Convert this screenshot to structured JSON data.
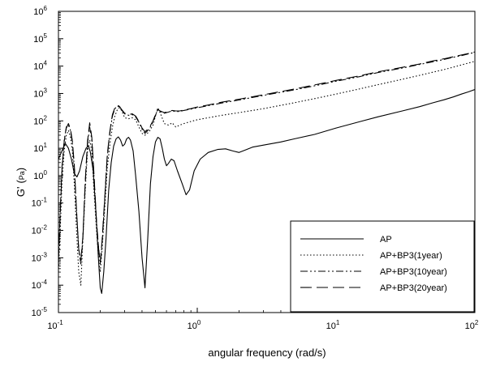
{
  "chart_data": {
    "type": "line",
    "title": "",
    "xlabel": "angular frequency (rad/s)",
    "ylabel_main": "G'",
    "ylabel_unit": "Pa",
    "x_scale": "log",
    "y_scale": "log",
    "xlim": [
      0.1,
      100
    ],
    "ylim": [
      1e-05,
      1000000
    ],
    "x_ticks": [
      {
        "value": 0.1,
        "base": "10",
        "exp": "-1"
      },
      {
        "value": 1,
        "base": "10",
        "exp": "0"
      },
      {
        "value": 10,
        "base": "10",
        "exp": "1"
      },
      {
        "value": 100,
        "base": "10",
        "exp": "2"
      }
    ],
    "y_ticks": [
      {
        "value": 1e-05,
        "base": "10",
        "exp": "-5"
      },
      {
        "value": 0.0001,
        "base": "10",
        "exp": "-4"
      },
      {
        "value": 0.001,
        "base": "10",
        "exp": "-3"
      },
      {
        "value": 0.01,
        "base": "10",
        "exp": "-2"
      },
      {
        "value": 0.1,
        "base": "10",
        "exp": "-1"
      },
      {
        "value": 1,
        "base": "10",
        "exp": "0"
      },
      {
        "value": 10,
        "base": "10",
        "exp": "1"
      },
      {
        "value": 100,
        "base": "10",
        "exp": "2"
      },
      {
        "value": 1000,
        "base": "10",
        "exp": "3"
      },
      {
        "value": 10000,
        "base": "10",
        "exp": "4"
      },
      {
        "value": 100000,
        "base": "10",
        "exp": "5"
      },
      {
        "value": 1000000,
        "base": "10",
        "exp": "6"
      }
    ],
    "grid": false,
    "legend_position": "bottom-right",
    "series": [
      {
        "name": "AP",
        "style": "solid",
        "points": [
          [
            0.1,
            4
          ],
          [
            0.106,
            8
          ],
          [
            0.112,
            15
          ],
          [
            0.118,
            10
          ],
          [
            0.124,
            4
          ],
          [
            0.13,
            1.2
          ],
          [
            0.136,
            0.9
          ],
          [
            0.142,
            1.5
          ],
          [
            0.15,
            5
          ],
          [
            0.158,
            10
          ],
          [
            0.165,
            12
          ],
          [
            0.17,
            7
          ],
          [
            0.178,
            1.5
          ],
          [
            0.186,
            0.05
          ],
          [
            0.194,
            0.001
          ],
          [
            0.2,
            8e-05
          ],
          [
            0.205,
            5e-05
          ],
          [
            0.212,
            0.0003
          ],
          [
            0.22,
            0.005
          ],
          [
            0.23,
            0.3
          ],
          [
            0.24,
            3
          ],
          [
            0.25,
            12
          ],
          [
            0.26,
            22
          ],
          [
            0.27,
            26
          ],
          [
            0.28,
            20
          ],
          [
            0.29,
            12
          ],
          [
            0.3,
            14
          ],
          [
            0.31,
            22
          ],
          [
            0.32,
            25
          ],
          [
            0.33,
            20
          ],
          [
            0.345,
            8
          ],
          [
            0.36,
            1
          ],
          [
            0.38,
            0.05
          ],
          [
            0.4,
            0.001
          ],
          [
            0.42,
            8e-05
          ],
          [
            0.44,
            0.005
          ],
          [
            0.46,
            0.5
          ],
          [
            0.48,
            5
          ],
          [
            0.5,
            17
          ],
          [
            0.52,
            25
          ],
          [
            0.54,
            22
          ],
          [
            0.56,
            10
          ],
          [
            0.58,
            4
          ],
          [
            0.6,
            2.3
          ],
          [
            0.62,
            2.8
          ],
          [
            0.65,
            4
          ],
          [
            0.68,
            3.5
          ],
          [
            0.72,
            1.5
          ],
          [
            0.78,
            0.5
          ],
          [
            0.83,
            0.2
          ],
          [
            0.88,
            0.3
          ],
          [
            0.95,
            1.5
          ],
          [
            1.05,
            4
          ],
          [
            1.2,
            7
          ],
          [
            1.4,
            9
          ],
          [
            1.6,
            9.5
          ],
          [
            1.8,
            8
          ],
          [
            2.0,
            7
          ],
          [
            2.2,
            8.5
          ],
          [
            2.5,
            11
          ],
          [
            3,
            13
          ],
          [
            4,
            17
          ],
          [
            5,
            22
          ],
          [
            7,
            32
          ],
          [
            10,
            55
          ],
          [
            15,
            95
          ],
          [
            20,
            140
          ],
          [
            30,
            230
          ],
          [
            40,
            330
          ],
          [
            50,
            460
          ],
          [
            60,
            590
          ],
          [
            70,
            750
          ],
          [
            80,
            950
          ],
          [
            90,
            1150
          ],
          [
            100,
            1400
          ]
        ]
      },
      {
        "name": "AP+BP3(1year)",
        "style": "dotted",
        "points": [
          [
            0.1,
            0.0003
          ],
          [
            0.103,
            0.01
          ],
          [
            0.106,
            0.5
          ],
          [
            0.11,
            8
          ],
          [
            0.114,
            30
          ],
          [
            0.118,
            45
          ],
          [
            0.122,
            25
          ],
          [
            0.126,
            8
          ],
          [
            0.13,
            0.5
          ],
          [
            0.135,
            0.01
          ],
          [
            0.14,
            0.0003
          ],
          [
            0.145,
            0.0001
          ],
          [
            0.15,
            0.005
          ],
          [
            0.156,
            0.3
          ],
          [
            0.162,
            8
          ],
          [
            0.168,
            20
          ],
          [
            0.174,
            8
          ],
          [
            0.18,
            0.3
          ],
          [
            0.188,
            0.01
          ],
          [
            0.195,
            0.0008
          ],
          [
            0.2,
            0.0003
          ],
          [
            0.206,
            0.002
          ],
          [
            0.215,
            0.05
          ],
          [
            0.225,
            2
          ],
          [
            0.235,
            15
          ],
          [
            0.245,
            60
          ],
          [
            0.255,
            150
          ],
          [
            0.265,
            250
          ],
          [
            0.275,
            300
          ],
          [
            0.285,
            240
          ],
          [
            0.3,
            130
          ],
          [
            0.32,
            120
          ],
          [
            0.34,
            130
          ],
          [
            0.36,
            110
          ],
          [
            0.38,
            60
          ],
          [
            0.4,
            35
          ],
          [
            0.42,
            30
          ],
          [
            0.45,
            40
          ],
          [
            0.48,
            70
          ],
          [
            0.5,
            150
          ],
          [
            0.52,
            300
          ],
          [
            0.54,
            200
          ],
          [
            0.58,
            80
          ],
          [
            0.62,
            70
          ],
          [
            0.66,
            85
          ],
          [
            0.7,
            60
          ],
          [
            0.75,
            70
          ],
          [
            0.8,
            80
          ],
          [
            0.9,
            95
          ],
          [
            1.0,
            110
          ],
          [
            1.2,
            130
          ],
          [
            1.5,
            160
          ],
          [
            2,
            200
          ],
          [
            3,
            280
          ],
          [
            5,
            460
          ],
          [
            7,
            650
          ],
          [
            10,
            950
          ],
          [
            15,
            1500
          ],
          [
            20,
            2100
          ],
          [
            30,
            3300
          ],
          [
            40,
            4600
          ],
          [
            50,
            6000
          ],
          [
            60,
            7500
          ],
          [
            70,
            9200
          ],
          [
            80,
            11000
          ],
          [
            90,
            13000
          ],
          [
            100,
            15000
          ]
        ]
      },
      {
        "name": "AP+BP3(10year)",
        "style": "dashdotdot",
        "points": [
          [
            0.1,
            0.001
          ],
          [
            0.103,
            0.05
          ],
          [
            0.106,
            2
          ],
          [
            0.11,
            20
          ],
          [
            0.114,
            60
          ],
          [
            0.118,
            70
          ],
          [
            0.122,
            45
          ],
          [
            0.126,
            15
          ],
          [
            0.13,
            2
          ],
          [
            0.135,
            0.05
          ],
          [
            0.14,
            0.002
          ],
          [
            0.145,
            0.0006
          ],
          [
            0.15,
            0.005
          ],
          [
            0.156,
            0.5
          ],
          [
            0.162,
            15
          ],
          [
            0.168,
            60
          ],
          [
            0.174,
            20
          ],
          [
            0.18,
            1
          ],
          [
            0.188,
            0.02
          ],
          [
            0.195,
            0.002
          ],
          [
            0.2,
            0.0006
          ],
          [
            0.206,
            0.003
          ],
          [
            0.215,
            0.1
          ],
          [
            0.225,
            5
          ],
          [
            0.235,
            40
          ],
          [
            0.245,
            150
          ],
          [
            0.255,
            280
          ],
          [
            0.265,
            350
          ],
          [
            0.275,
            320
          ],
          [
            0.285,
            250
          ],
          [
            0.3,
            180
          ],
          [
            0.32,
            160
          ],
          [
            0.34,
            170
          ],
          [
            0.36,
            140
          ],
          [
            0.38,
            90
          ],
          [
            0.4,
            50
          ],
          [
            0.42,
            35
          ],
          [
            0.45,
            50
          ],
          [
            0.48,
            90
          ],
          [
            0.5,
            160
          ],
          [
            0.52,
            250
          ],
          [
            0.54,
            220
          ],
          [
            0.58,
            190
          ],
          [
            0.62,
            210
          ],
          [
            0.66,
            230
          ],
          [
            0.7,
            220
          ],
          [
            0.75,
            220
          ],
          [
            0.8,
            240
          ],
          [
            0.9,
            270
          ],
          [
            1.0,
            300
          ],
          [
            1.2,
            360
          ],
          [
            1.5,
            450
          ],
          [
            2,
            580
          ],
          [
            3,
            850
          ],
          [
            5,
            1350
          ],
          [
            7,
            1900
          ],
          [
            10,
            2800
          ],
          [
            15,
            4200
          ],
          [
            20,
            5800
          ],
          [
            30,
            8500
          ],
          [
            40,
            11500
          ],
          [
            50,
            14500
          ],
          [
            60,
            17500
          ],
          [
            70,
            21000
          ],
          [
            80,
            24000
          ],
          [
            90,
            28000
          ],
          [
            100,
            32000
          ]
        ]
      },
      {
        "name": "AP+BP3(20year)",
        "style": "longdash",
        "points": [
          [
            0.1,
            0.0008
          ],
          [
            0.103,
            0.04
          ],
          [
            0.106,
            1.5
          ],
          [
            0.11,
            18
          ],
          [
            0.114,
            55
          ],
          [
            0.118,
            80
          ],
          [
            0.122,
            50
          ],
          [
            0.126,
            18
          ],
          [
            0.13,
            2.5
          ],
          [
            0.135,
            0.05
          ],
          [
            0.14,
            0.002
          ],
          [
            0.145,
            0.0008
          ],
          [
            0.15,
            0.006
          ],
          [
            0.156,
            0.6
          ],
          [
            0.162,
            18
          ],
          [
            0.168,
            85
          ],
          [
            0.174,
            25
          ],
          [
            0.18,
            1.2
          ],
          [
            0.188,
            0.02
          ],
          [
            0.195,
            0.002
          ],
          [
            0.2,
            0.0007
          ],
          [
            0.206,
            0.004
          ],
          [
            0.215,
            0.12
          ],
          [
            0.225,
            6
          ],
          [
            0.235,
            45
          ],
          [
            0.245,
            170
          ],
          [
            0.255,
            300
          ],
          [
            0.265,
            380
          ],
          [
            0.275,
            340
          ],
          [
            0.285,
            260
          ],
          [
            0.3,
            190
          ],
          [
            0.32,
            170
          ],
          [
            0.34,
            180
          ],
          [
            0.36,
            150
          ],
          [
            0.38,
            95
          ],
          [
            0.4,
            55
          ],
          [
            0.42,
            40
          ],
          [
            0.45,
            55
          ],
          [
            0.48,
            100
          ],
          [
            0.5,
            170
          ],
          [
            0.52,
            260
          ],
          [
            0.54,
            230
          ],
          [
            0.58,
            200
          ],
          [
            0.62,
            220
          ],
          [
            0.66,
            240
          ],
          [
            0.7,
            230
          ],
          [
            0.75,
            230
          ],
          [
            0.8,
            250
          ],
          [
            0.9,
            280
          ],
          [
            1.0,
            320
          ],
          [
            1.2,
            380
          ],
          [
            1.5,
            480
          ],
          [
            2,
            620
          ],
          [
            3,
            900
          ],
          [
            5,
            1450
          ],
          [
            7,
            2050
          ],
          [
            10,
            3000
          ],
          [
            15,
            4500
          ],
          [
            20,
            6200
          ],
          [
            30,
            9000
          ],
          [
            40,
            12000
          ],
          [
            50,
            15500
          ],
          [
            60,
            18500
          ],
          [
            70,
            22000
          ],
          [
            80,
            25500
          ],
          [
            90,
            29000
          ],
          [
            100,
            33000
          ]
        ]
      }
    ]
  }
}
